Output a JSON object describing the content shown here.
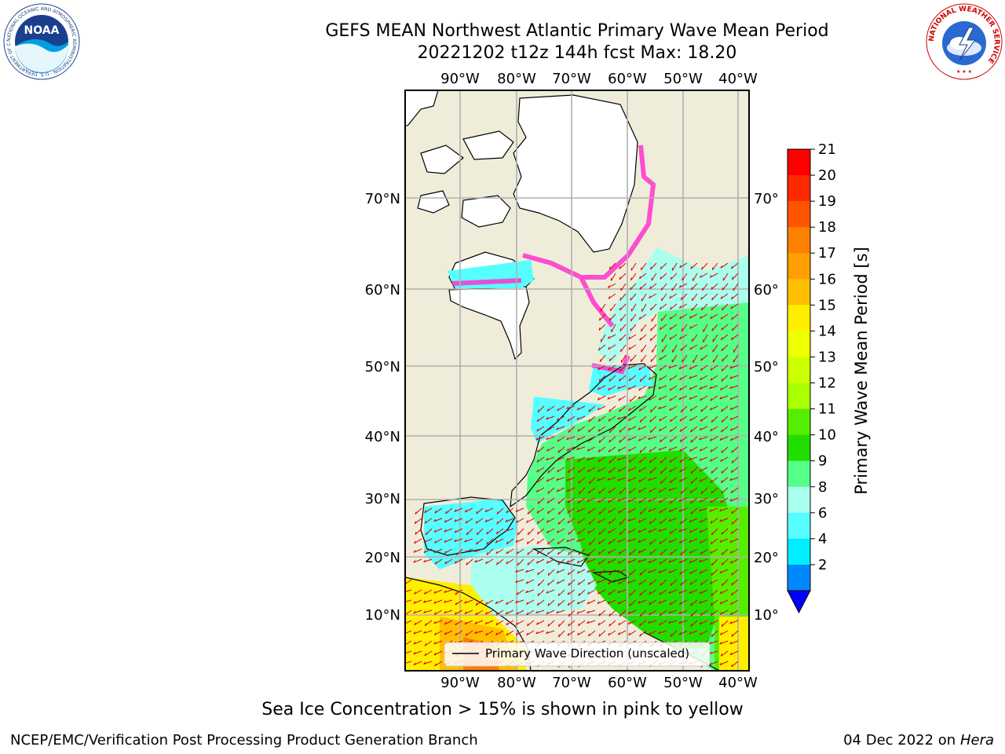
{
  "header": {
    "title_line1": "GEFS MEAN Northwest Atlantic Primary Wave Mean Period",
    "title_line2": "20221202 t12z 144h fcst    Max: 18.20"
  },
  "logos": {
    "noaa_text": "NOAA",
    "noaa_ring_text": "NATIONAL OCEANIC AND ATMOSPHERIC ADMINISTRATION · U.S. DEPARTMENT OF COMMERCE",
    "nws_ring_text": "NATIONAL WEATHER SERVICE"
  },
  "map": {
    "lon_labels": [
      "90°W",
      "80°W",
      "70°W",
      "60°W",
      "50°W",
      "40°W"
    ],
    "lat_labels": [
      "70°N",
      "60°N",
      "50°N",
      "40°N",
      "30°N",
      "20°N",
      "10°N"
    ],
    "legend_label": "Primary Wave Direction (unscaled)",
    "colors": {
      "land": "#efedda",
      "ice": "#ffffff",
      "grid": "#b0b0b0",
      "arrow": "#e00000"
    }
  },
  "colorbar": {
    "label": "Primary Wave Mean Period [s]",
    "ticks": [
      "21",
      "20",
      "19",
      "18",
      "17",
      "16",
      "15",
      "14",
      "13",
      "12",
      "11",
      "10",
      "9",
      "8",
      "6",
      "4",
      "2"
    ],
    "colors_top_to_bottom": [
      "#ff0000",
      "#ff2a00",
      "#ff5500",
      "#ff7f00",
      "#ff9f00",
      "#ffbf00",
      "#ffee00",
      "#eeff00",
      "#ccff00",
      "#aaff00",
      "#55ee00",
      "#22dd00",
      "#55ff88",
      "#aaffee",
      "#55ffff",
      "#00eeff",
      "#0088ff"
    ],
    "extend_color": "#0000ff"
  },
  "footer": {
    "note": "Sea Ice Concentration > 15% is shown in pink to yellow",
    "left": "NCEP/EMC/Verification Post Processing Product Generation Branch",
    "right_date": "04 Dec 2022 on",
    "right_host": "Hera"
  }
}
